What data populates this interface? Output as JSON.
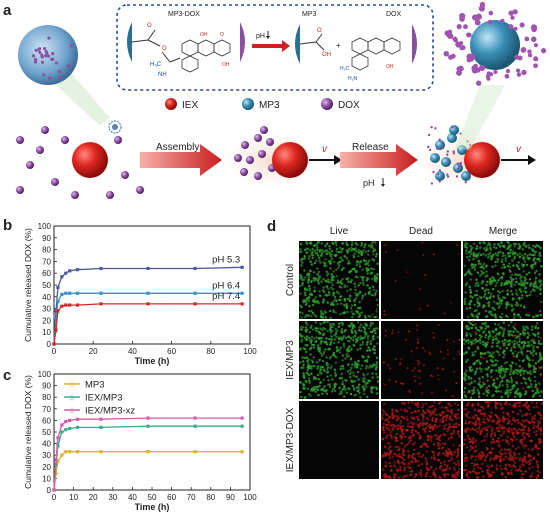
{
  "panel_labels": {
    "a": "a",
    "b": "b",
    "c": "c",
    "d": "d"
  },
  "scheme": {
    "mp3_dox": "MP3-DOX",
    "mp3": "MP3",
    "dox": "DOX",
    "ph_arrow": "pH",
    "plus": "+",
    "legend": [
      "IEX",
      "MP3",
      "DOX"
    ],
    "assembly": "Assembly",
    "release": "Release",
    "velocity": "v",
    "ph_down": "pH"
  },
  "colors": {
    "iex": "#d62020",
    "mp3": "#3a90b8",
    "dox": "#8b4fa0",
    "arrow": "#c81e1e",
    "live": "#2e9e2e",
    "dead": "#b01818"
  },
  "chart_b": {
    "type": "line",
    "ylabel": "Cumulative released DOX (%)",
    "xlabel": "Time (h)",
    "xlim": [
      0,
      100
    ],
    "ylim": [
      0,
      100
    ],
    "xticks": [
      0,
      20,
      40,
      60,
      80,
      100
    ],
    "yticks": [
      0,
      10,
      20,
      30,
      40,
      50,
      60,
      70,
      80,
      90,
      100
    ],
    "series": [
      {
        "name": "pH 5.3",
        "color": "#4a5a9a",
        "x": [
          0,
          1,
          2,
          4,
          6,
          8,
          12,
          24,
          48,
          72,
          96
        ],
        "y": [
          0,
          28,
          48,
          57,
          60,
          62,
          63,
          64,
          64,
          64,
          65
        ]
      },
      {
        "name": "pH 6.4",
        "color": "#3a8fc8",
        "x": [
          0,
          1,
          2,
          4,
          6,
          8,
          12,
          24,
          48,
          72,
          96
        ],
        "y": [
          0,
          20,
          36,
          42,
          43,
          43,
          43,
          43,
          43,
          43,
          43
        ]
      },
      {
        "name": "pH 7.4",
        "color": "#d42828",
        "x": [
          0,
          1,
          2,
          4,
          6,
          8,
          12,
          24,
          48,
          72,
          96
        ],
        "y": [
          0,
          12,
          28,
          32,
          33,
          33,
          33,
          34,
          34,
          34,
          34
        ]
      }
    ]
  },
  "chart_c": {
    "type": "line",
    "ylabel": "Cumulative released DOX (%)",
    "xlabel": "Time (h)",
    "xlim": [
      0,
      100
    ],
    "ylim": [
      0,
      100
    ],
    "xticks": [
      0,
      10,
      20,
      30,
      40,
      50,
      60,
      70,
      80,
      90,
      100
    ],
    "yticks": [
      0,
      10,
      20,
      30,
      40,
      50,
      60,
      70,
      80,
      90,
      100
    ],
    "series": [
      {
        "name": "MP3",
        "color": "#e0b030",
        "x": [
          0,
          1,
          2,
          4,
          6,
          8,
          12,
          24,
          48,
          72,
          96
        ],
        "y": [
          0,
          14,
          25,
          30,
          33,
          33,
          33,
          33,
          33,
          33,
          33
        ]
      },
      {
        "name": "IEX/MP3",
        "color": "#3aab90",
        "x": [
          0,
          1,
          2,
          4,
          6,
          8,
          12,
          24,
          48,
          72,
          96
        ],
        "y": [
          0,
          22,
          38,
          50,
          52,
          53,
          54,
          54,
          55,
          55,
          55
        ]
      },
      {
        "name": "IEX/MP3-xz",
        "color": "#d55ab0",
        "x": [
          0,
          1,
          2,
          4,
          6,
          8,
          12,
          24,
          48,
          72,
          96
        ],
        "y": [
          0,
          26,
          45,
          56,
          59,
          60,
          61,
          61,
          62,
          62,
          62
        ]
      }
    ]
  },
  "panel_d": {
    "columns": [
      "Live",
      "Dead",
      "Merge"
    ],
    "rows": [
      "Control",
      "IEX/MP3",
      "IEX/MP3-DOX"
    ],
    "cells": [
      [
        "live",
        "dead_sparse",
        "live"
      ],
      [
        "live",
        "dead_medium",
        "live_dots"
      ],
      [
        "black",
        "dead_dense",
        "dead_dense"
      ]
    ]
  }
}
